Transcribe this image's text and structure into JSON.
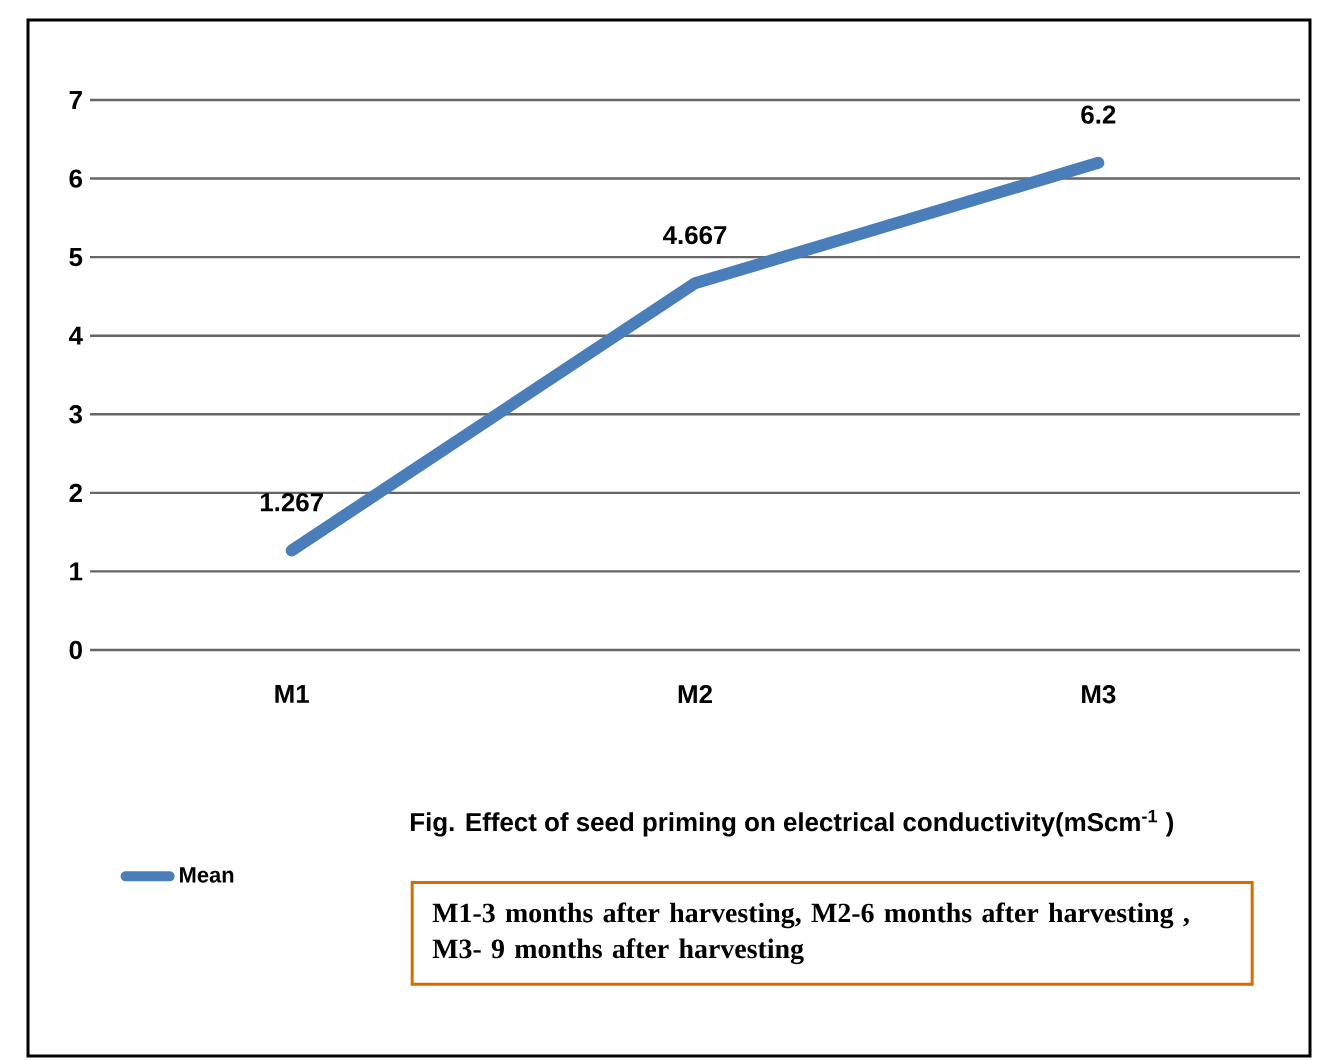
{
  "chart_data": {
    "type": "line",
    "title": "Fig. Effect of seed priming on electrical conductivity(mScm$^{-1}$ )",
    "categories": [
      "M1",
      "M2",
      "M3"
    ],
    "series": [
      {
        "name": "Mean",
        "color": "#4a7ebb",
        "values": [
          1.267,
          4.667,
          6.2
        ]
      }
    ],
    "ylim": [
      0,
      7
    ],
    "yticks": [
      0,
      1,
      2,
      3,
      4,
      5,
      6,
      7
    ],
    "grid": "y",
    "data_labels": true,
    "legend": "bottom left",
    "marker": "none",
    "line_style": "solid",
    "annotations": [
      "M1-3 months after harvesting, M2-6 months after harvesting , M3- 9 months after harvesting"
    ]
  }
}
